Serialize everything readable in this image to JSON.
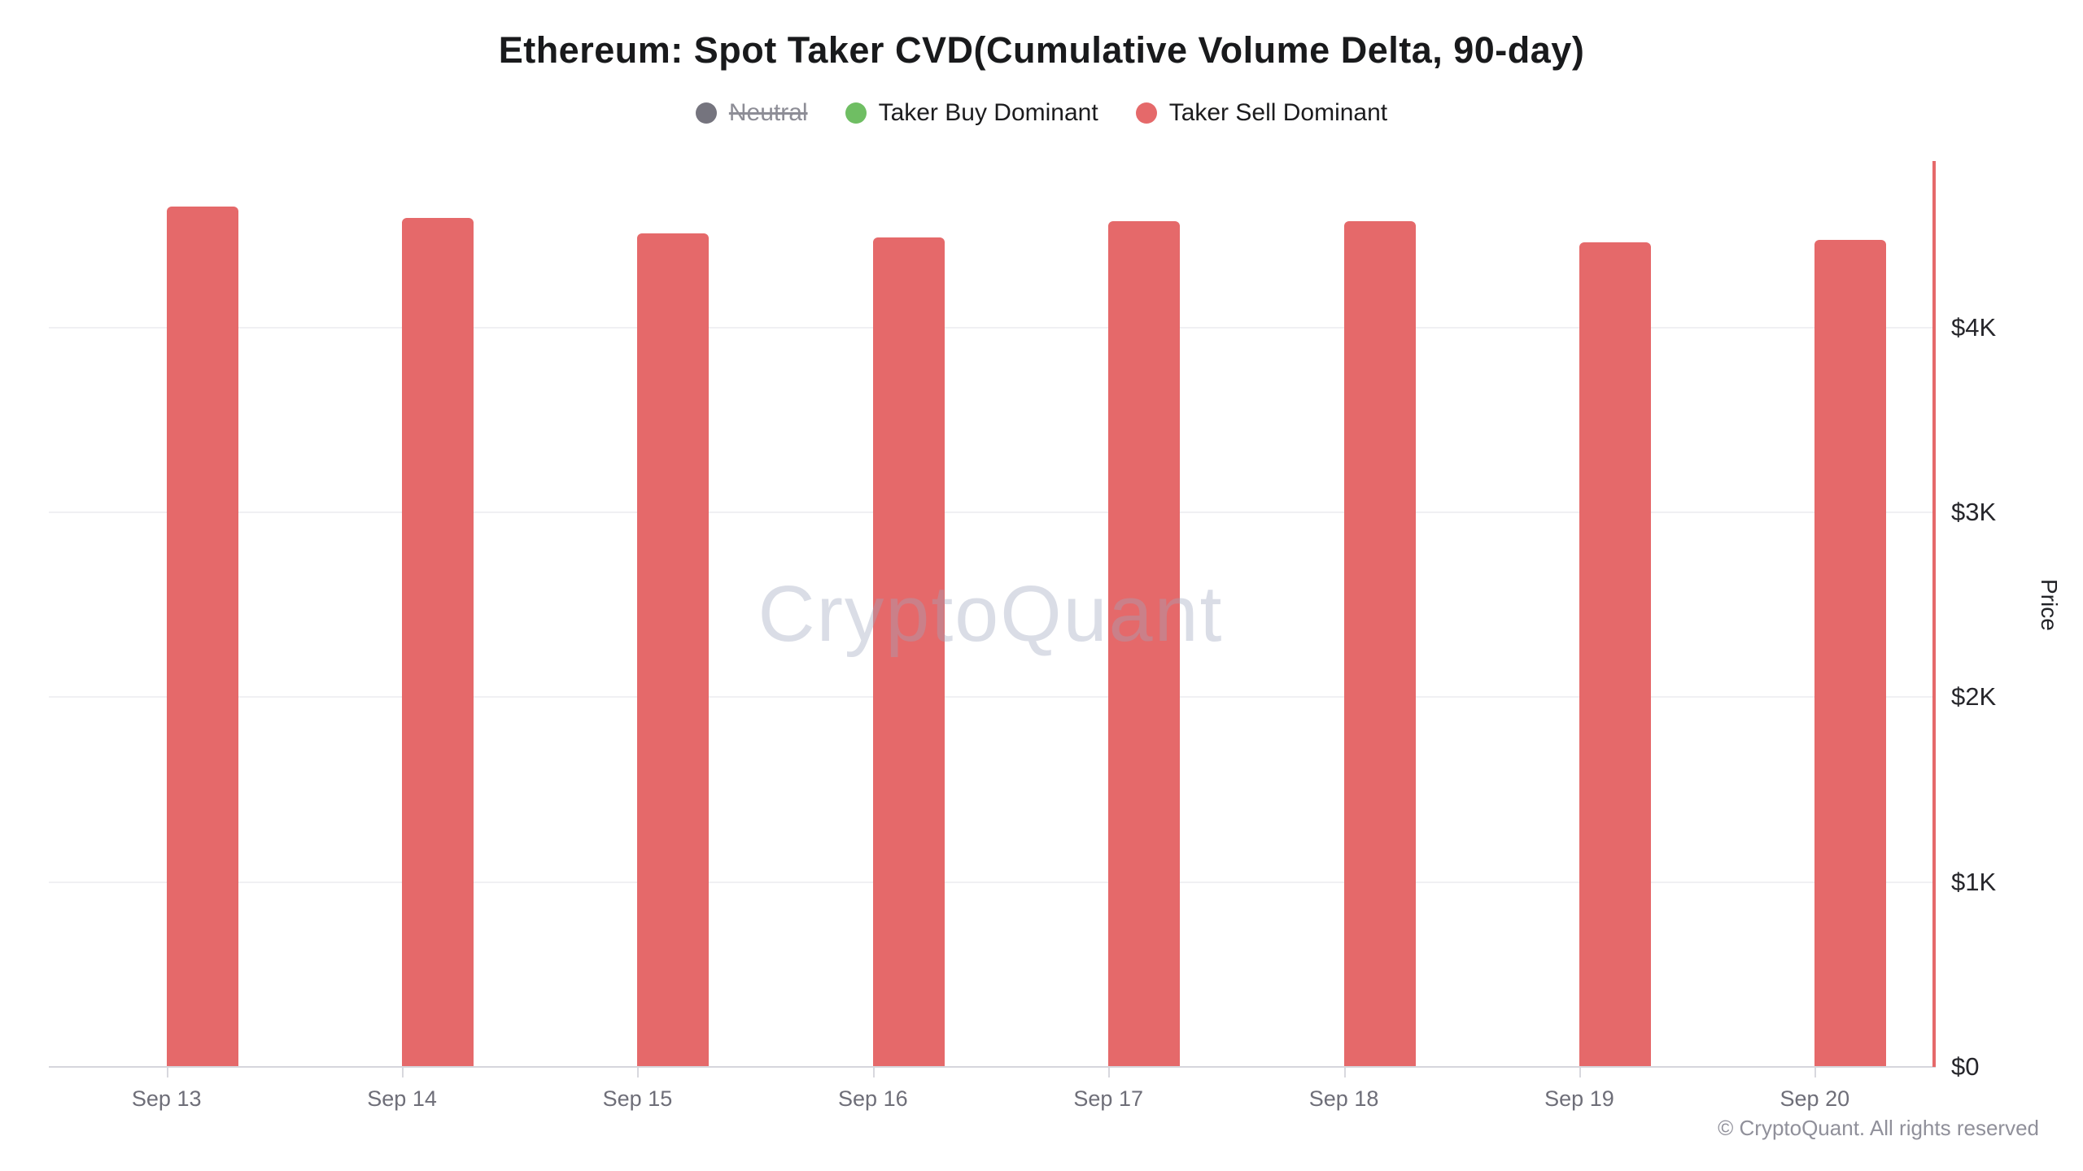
{
  "title": "Ethereum: Spot Taker CVD(Cumulative Volume Delta, 90-day)",
  "watermark": "CryptoQuant",
  "copyright": "© CryptoQuant. All rights reserved",
  "legend": {
    "items": [
      {
        "label": "Neutral",
        "color": "#75747e",
        "disabled": true
      },
      {
        "label": "Taker Buy Dominant",
        "color": "#6fbe63",
        "disabled": false
      },
      {
        "label": "Taker Sell Dominant",
        "color": "#e5696a",
        "disabled": false
      }
    ]
  },
  "chart_data": {
    "type": "bar",
    "title": "Ethereum: Spot Taker CVD(Cumulative Volume Delta, 90-day)",
    "categories": [
      "Sep 13",
      "Sep 14",
      "Sep 15",
      "Sep 16",
      "Sep 17",
      "Sep 18",
      "Sep 19",
      "Sep 20"
    ],
    "series": [
      {
        "name": "Taker Sell Dominant",
        "color": "#e5696a",
        "values": [
          4655,
          4590,
          4510,
          4485,
          4575,
          4575,
          4460,
          4475
        ]
      }
    ],
    "xlabel": "",
    "ylabel": "Price",
    "ylim": [
      0,
      4900
    ],
    "y_ticks": [
      {
        "value": 0,
        "label": "$0"
      },
      {
        "value": 1000,
        "label": "$1K"
      },
      {
        "value": 2000,
        "label": "$2K"
      },
      {
        "value": 3000,
        "label": "$3K"
      },
      {
        "value": 4000,
        "label": "$4K"
      }
    ],
    "grid": true,
    "legend_position": "top",
    "price_axis_color": "#e5696a"
  }
}
